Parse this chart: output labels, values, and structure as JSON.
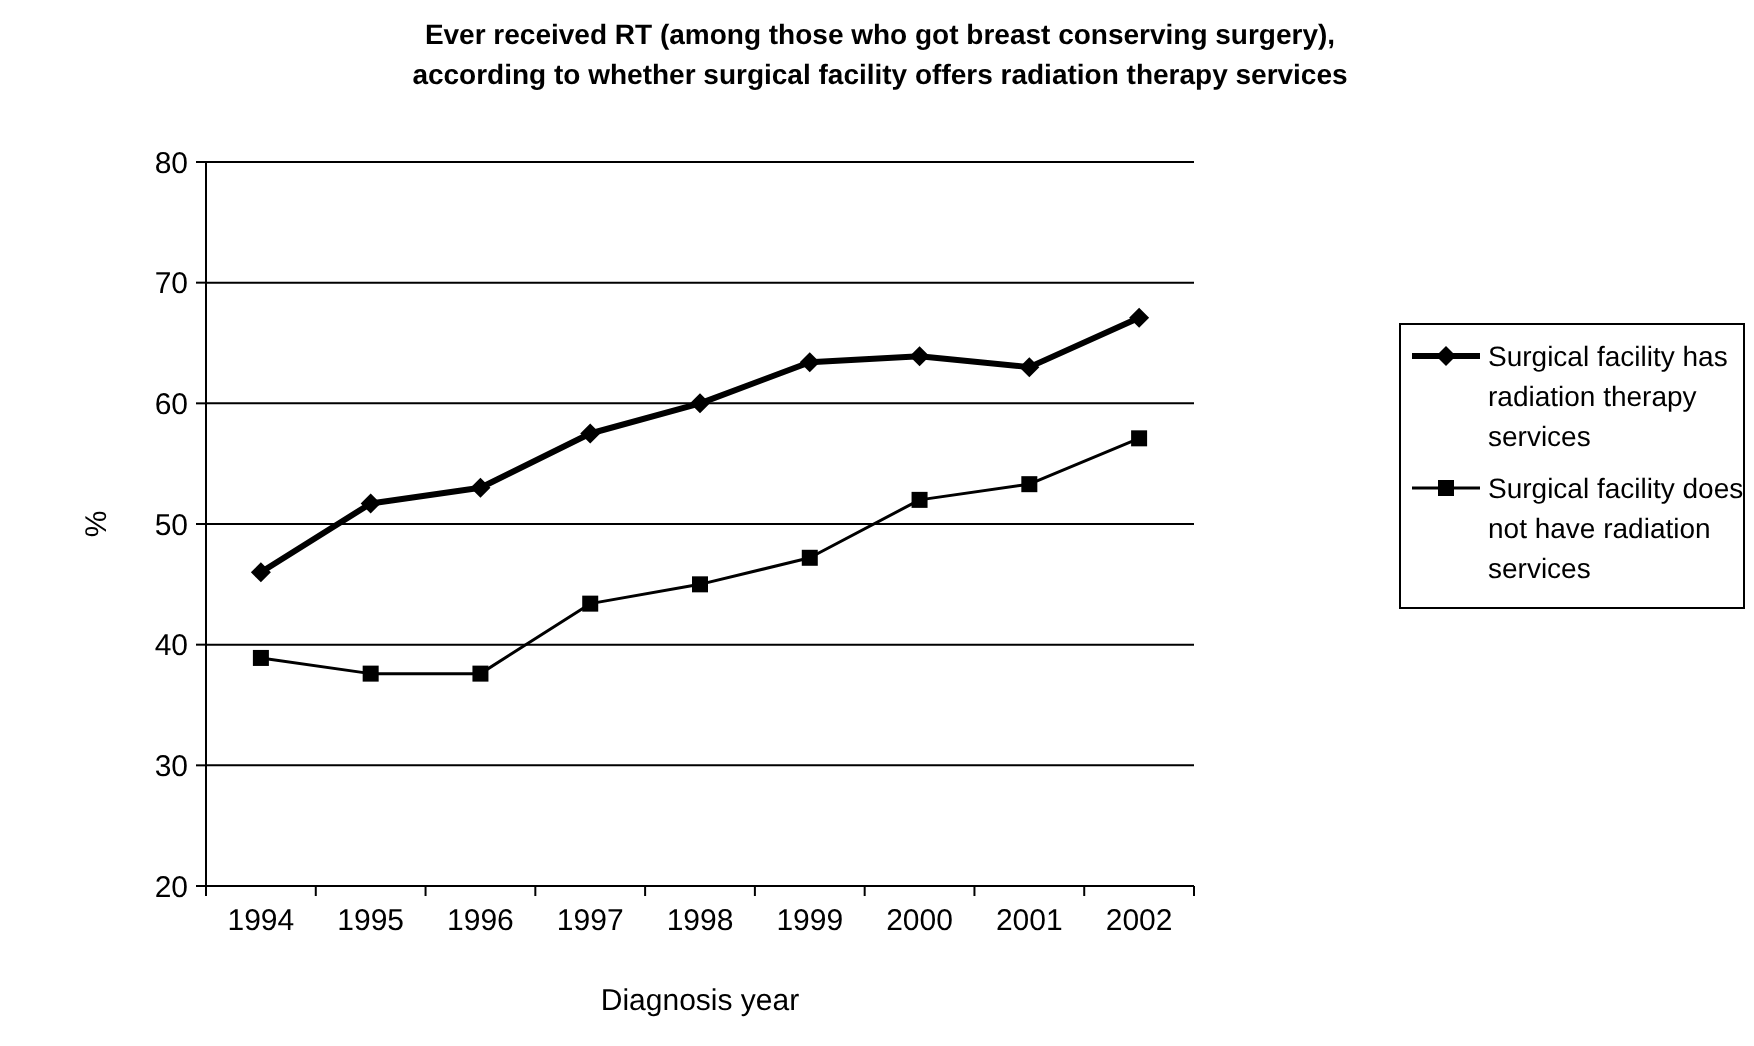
{
  "chart_data": {
    "type": "line",
    "title": "Ever received RT (among those who got breast conserving surgery),\naccording to whether surgical facility offers radiation therapy services",
    "xlabel": "Diagnosis year",
    "ylabel": "%",
    "categories": [
      "1994",
      "1995",
      "1996",
      "1997",
      "1998",
      "1999",
      "2000",
      "2001",
      "2002"
    ],
    "series": [
      {
        "name": "Surgical facility has radiation therapy services",
        "color": "#000000",
        "marker": "diamond",
        "values": [
          46.0,
          51.7,
          53.0,
          57.5,
          60.0,
          63.4,
          63.9,
          63.0,
          67.1
        ]
      },
      {
        "name": "Surgical facility does not have radiation services",
        "color": "#000000",
        "marker": "square",
        "values": [
          38.9,
          37.6,
          37.6,
          43.4,
          45.0,
          47.2,
          52.0,
          53.3,
          57.1
        ]
      }
    ],
    "ylim": [
      20,
      80
    ],
    "yticks": [
      20,
      30,
      40,
      50,
      60,
      70,
      80
    ],
    "grid": "y",
    "legend": "right",
    "line_style": "solid"
  }
}
